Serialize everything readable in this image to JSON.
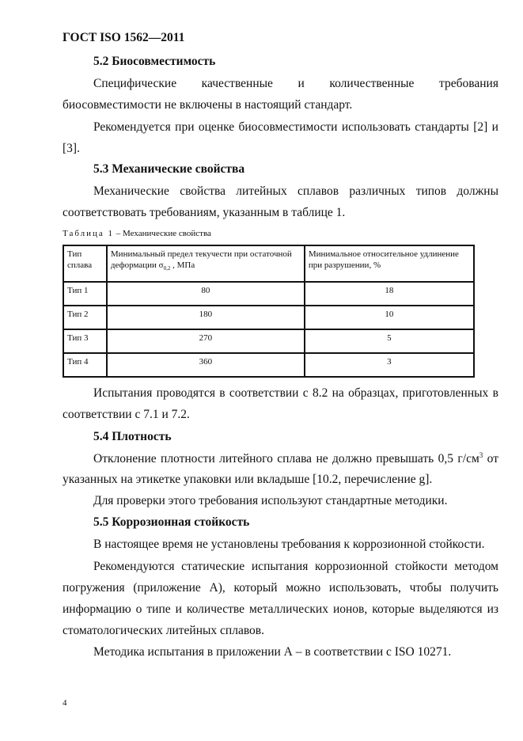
{
  "header": {
    "doc_id": "ГОСТ ISO 1562—2011"
  },
  "s52": {
    "title": "5.2 Биосовместимость",
    "p1_l1": [
      "Специфические",
      "качественные",
      "и",
      "количественные",
      "требования"
    ],
    "p1_l2": "биосовместимости не включены в настоящий стандарт.",
    "p2_l1": "Рекомендуется при оценке биосовместимости использовать стандарты [2] и",
    "p2_l2": "[3]."
  },
  "s53": {
    "title": "5.3 Механические свойства",
    "p1_l1": "Механические свойства литейных сплавов различных типов должны",
    "p1_l2": "соответствовать требованиям, указанным в таблице 1."
  },
  "table": {
    "caption_prefix": "Таблица 1",
    "caption_text": " – Механические свойства",
    "headers": {
      "col1": "Тип сплава",
      "col2_pre": "Минимальный предел текучести при остаточной деформации σ",
      "col2_sub": "0,2",
      "col2_post": " , МПа",
      "col3": "Минимальное относительное удлинение при разрушении, %"
    },
    "rows": [
      {
        "type": "Тип 1",
        "yield": "80",
        "elong": "18"
      },
      {
        "type": "Тип 2",
        "yield": "180",
        "elong": "10"
      },
      {
        "type": "Тип 3",
        "yield": "270",
        "elong": "5"
      },
      {
        "type": "Тип 4",
        "yield": "360",
        "elong": "3"
      }
    ]
  },
  "after_table": {
    "l1": "Испытания проводятся в соответствии с 8.2 на образцах, приготовленных в",
    "l2": "соответствии с 7.1 и 7.2."
  },
  "s54": {
    "title": "5.4 Плотность",
    "p1_l1_pre": "Отклонение плотности литейного сплава не должно превышать 0,5 г/см",
    "p1_l1_sup": "3",
    "p1_l1_post": " от",
    "p1_l2": "указанных на этикетке упаковки или вкладыше [10.2, перечисление g].",
    "p2": "Для проверки этого требования используют стандартные методики."
  },
  "s55": {
    "title": "5.5 Коррозионная стойкость",
    "p1": "В настоящее время не установлены требования к коррозионной стойкости.",
    "p2_l1": "Рекомендуются статические испытания коррозионной стойкости методом",
    "p2_l2": "погружения (приложение А), который можно использовать, чтобы получить",
    "p2_l3": "информацию о типе и количестве металлических ионов, которые выделяются из",
    "p2_l4": "стоматологических литейных сплавов.",
    "p3": "Методика испытания в приложении А – в соответствии с ISO 10271."
  },
  "footer": {
    "page_number": "4"
  }
}
